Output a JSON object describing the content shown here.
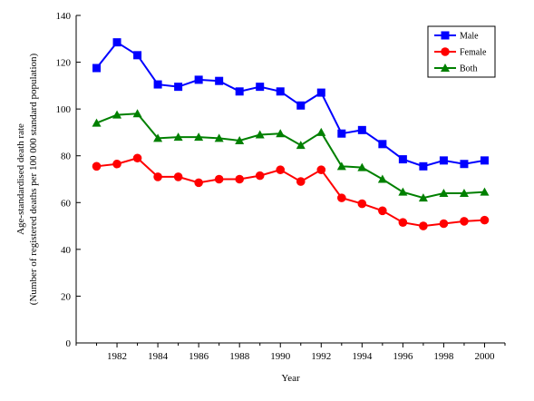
{
  "chart_data": {
    "type": "line",
    "title": "",
    "xlabel": "Year",
    "ylabel": "Age-standardised death rate",
    "ylabel_sub": "(Number of registered deaths per 100 000 standard population)",
    "xlim": [
      1980,
      2001
    ],
    "ylim": [
      0,
      140
    ],
    "x_ticks": [
      1982,
      1984,
      1986,
      1988,
      1990,
      1992,
      1994,
      1996,
      1998,
      2000
    ],
    "y_ticks": [
      0,
      20,
      40,
      60,
      80,
      100,
      120,
      140
    ],
    "grid": false,
    "legend_position": "top-right",
    "x": [
      1981,
      1982,
      1983,
      1984,
      1985,
      1986,
      1987,
      1988,
      1989,
      1990,
      1991,
      1992,
      1993,
      1994,
      1995,
      1996,
      1997,
      1998,
      1999,
      2000
    ],
    "series": [
      {
        "name": "Male",
        "color": "#0000FF",
        "marker": "square",
        "values": [
          117.5,
          128.5,
          123,
          110.5,
          109.5,
          112.5,
          112,
          107.5,
          109.5,
          107.5,
          101.5,
          107,
          89.5,
          91,
          85,
          78.5,
          75.5,
          78,
          76.5,
          78
        ]
      },
      {
        "name": "Female",
        "color": "#FF0000",
        "marker": "circle",
        "values": [
          75.5,
          76.5,
          79,
          71,
          71,
          68.5,
          70,
          70,
          71.5,
          74,
          69,
          74,
          62,
          59.5,
          56.5,
          51.5,
          50,
          51,
          52,
          52.5
        ]
      },
      {
        "name": "Both",
        "color": "#008000",
        "marker": "triangle",
        "values": [
          94,
          97.5,
          98,
          87.5,
          88,
          88,
          87.5,
          86.5,
          89,
          89.5,
          84.5,
          90,
          75.5,
          75,
          70,
          64.5,
          62,
          64,
          64,
          64.5
        ]
      }
    ]
  }
}
